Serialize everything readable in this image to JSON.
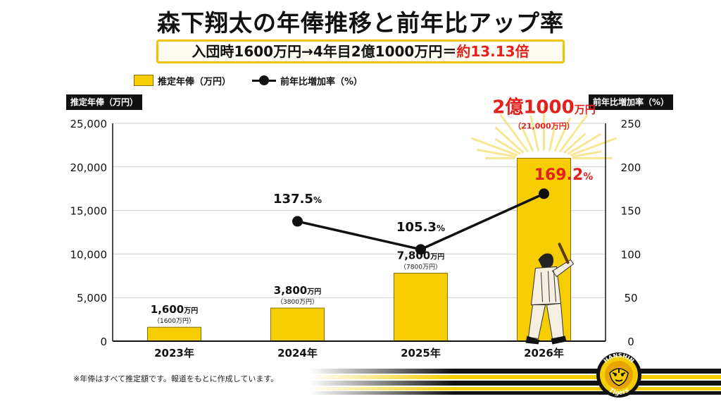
{
  "title": "森下翔太の年俸推移と前年比アップ率",
  "subtitle": {
    "main": "入団時1600万円→4年目2億1000万円＝",
    "highlight": "約13.13倍"
  },
  "legend": {
    "bar_label": "推定年俸（万円）",
    "line_label": "前年比増加率（%）"
  },
  "left_axis_title": "推定年俸（万円）",
  "right_axis_title": "前年比増加率（%）",
  "footnote": "※年俸はすべて推定額です。報道をもとに作成しています。",
  "logo": {
    "top": "HANSHIN",
    "bottom": "Tigers"
  },
  "colors": {
    "bar": "#f6cd00",
    "bar_border": "#8a7000",
    "line": "#111111",
    "highlight": "#e3201b",
    "stripe_black": "#111111",
    "stripe_yellow": "#f6cd00"
  },
  "chart_data": {
    "type": "bar",
    "categories": [
      "2023年",
      "2024年",
      "2025年",
      "2026年"
    ],
    "ylim": [
      0,
      25000
    ],
    "y_ticks": [
      "0",
      "5,000",
      "10,000",
      "15,000",
      "20,000",
      "25,000"
    ],
    "y2lim": [
      0,
      250
    ],
    "y2_ticks": [
      "0",
      "50",
      "100",
      "150",
      "200",
      "250"
    ],
    "grid": true,
    "legend_position": "top-left",
    "series": [
      {
        "name": "推定年俸（万円）",
        "type": "bar",
        "values": [
          1600,
          3800,
          7800,
          21000
        ],
        "labels": [
          "1,600",
          "3,800",
          "7,800",
          "2億1000"
        ],
        "label_unit": "万円",
        "sub_labels": [
          "（1600万円）",
          "（3800万円）",
          "（7800万円）",
          "（21,000万円）"
        ]
      },
      {
        "name": "前年比増加率（%）",
        "type": "line",
        "axis": "right",
        "values": [
          null,
          137.5,
          105.3,
          169.2
        ],
        "labels": [
          "",
          "137.5",
          "105.3",
          "169.2"
        ],
        "label_unit": "%"
      }
    ]
  }
}
